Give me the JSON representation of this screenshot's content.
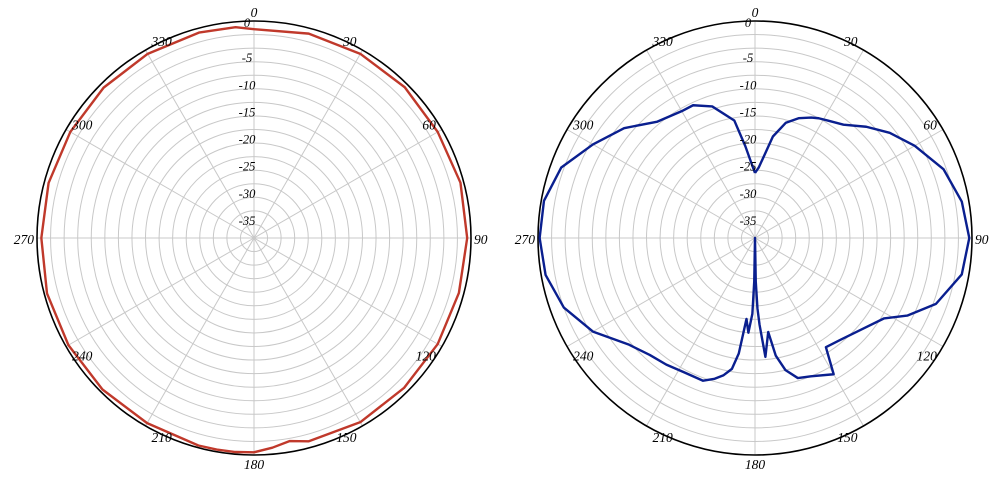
{
  "chart_data": [
    {
      "type": "polar",
      "angle_ticks": [
        "0",
        "30",
        "60",
        "90",
        "120",
        "150",
        "180",
        "210",
        "240",
        "270",
        "300",
        "330"
      ],
      "radial_ticks": [
        "0",
        "-5",
        "-10",
        "-15",
        "-20",
        "-25",
        "-30",
        "-35"
      ],
      "rlim": [
        -40,
        0
      ],
      "grid": true,
      "colors": {
        "reference": "#000000",
        "series": "#c0392b"
      },
      "reference_circle_db": 0,
      "series": [
        {
          "angles": [
            0,
            15,
            30,
            45,
            60,
            75,
            90,
            105,
            120,
            135,
            150,
            165,
            170,
            175,
            180,
            185,
            190,
            195,
            210,
            225,
            240,
            255,
            270,
            285,
            300,
            315,
            330,
            345,
            355,
            360
          ],
          "values": [
            -1.5,
            -1.0,
            -0.8,
            -0.7,
            -0.9,
            -0.6,
            -0.7,
            -0.9,
            -0.9,
            -0.9,
            -0.8,
            -1.2,
            -2.0,
            -1.2,
            -0.5,
            -0.4,
            -0.4,
            -0.4,
            -0.6,
            -0.5,
            -0.5,
            -0.5,
            -0.8,
            -0.8,
            -0.9,
            -0.8,
            -0.8,
            -0.8,
            -1.0,
            -1.5
          ]
        }
      ]
    },
    {
      "type": "polar",
      "angle_ticks": [
        "0",
        "30",
        "60",
        "90",
        "120",
        "150",
        "180",
        "210",
        "240",
        "270",
        "300",
        "330"
      ],
      "radial_ticks": [
        "0",
        "-5",
        "-10",
        "-15",
        "-20",
        "-25",
        "-30",
        "-35"
      ],
      "rlim": [
        -40,
        0
      ],
      "grid": true,
      "colors": {
        "reference": "#000000",
        "series": "#0a1f8f"
      },
      "reference_circle_db": 0,
      "series": [
        {
          "angles": [
            0,
            3,
            6,
            10,
            15,
            20,
            25,
            28,
            32,
            38,
            45,
            52,
            60,
            70,
            80,
            90,
            100,
            110,
            117,
            122,
            130,
            140,
            147,
            150,
            158,
            163,
            167,
            170,
            172,
            175,
            177,
            178,
            179,
            180,
            181,
            182,
            184,
            186,
            188,
            190,
            193,
            196,
            200,
            208,
            215,
            222,
            230,
            240,
            250,
            260,
            270,
            280,
            290,
            300,
            310,
            320,
            330,
            335,
            342,
            350,
            354,
            357,
            360
          ],
          "values": [
            -28,
            -27,
            -25,
            -21,
            -18,
            -16.5,
            -15.5,
            -15,
            -14.5,
            -13.5,
            -11,
            -8.5,
            -6,
            -3,
            -1.3,
            -0.5,
            -1.3,
            -4.5,
            -8.5,
            -12,
            -14,
            -15.5,
            -16,
            -11,
            -12.5,
            -13,
            -15,
            -18,
            -22.5,
            -18,
            -24,
            -27,
            -32,
            -40,
            -32,
            -26,
            -22.5,
            -25,
            -18.5,
            -15.5,
            -14,
            -13,
            -12,
            -12,
            -11.5,
            -11,
            -9.5,
            -5.5,
            -2.5,
            -0.8,
            -0.3,
            -0.5,
            -2,
            -5.5,
            -8.5,
            -12,
            -13,
            -13,
            -14.5,
            -18,
            -23,
            -26,
            -28
          ]
        }
      ]
    }
  ]
}
